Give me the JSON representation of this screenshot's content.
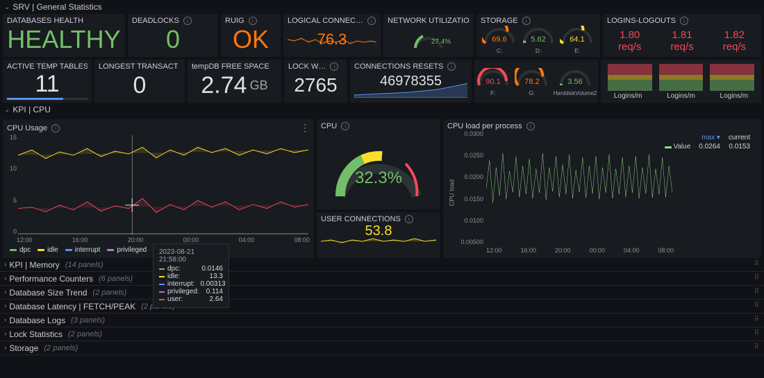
{
  "row_srv": {
    "title": "SRV | General Statistics"
  },
  "stats": {
    "db_health": {
      "title": "DATABASES HEALTH",
      "value": "HEALTHY"
    },
    "deadlocks": {
      "title": "DEADLOCKS",
      "value": "0"
    },
    "ruig": {
      "title": "RUIG",
      "value": "OK"
    },
    "logical_conn": {
      "title": "LOGICAL CONNEC…",
      "value": "76.3"
    },
    "net_util": {
      "title": "NETWORK UTILIZATION",
      "value": "27.4%"
    },
    "storage": {
      "title": "STORAGE"
    },
    "logins_logouts": {
      "title": "LOGINS-LOGOUTS",
      "v1": "1.80 req/s",
      "v2": "1.81 req/s",
      "v3": "1.82 req/s"
    },
    "active_temp": {
      "title": "ACTIVE TEMP TABLES",
      "value": "11"
    },
    "longest_tx": {
      "title": "LONGEST TRANSACT R…",
      "value": "0"
    },
    "tempdb": {
      "title": "tempDB FREE SPACE",
      "value": "2.74",
      "unit": "GB"
    },
    "lock_w": {
      "title": "LOCK W…",
      "value": "2765"
    },
    "conn_resets": {
      "title": "CONNECTIONS RESETS",
      "value": "46978355"
    },
    "logins_m": {
      "l1": "Logins/m",
      "l2": "Logins/m",
      "l3": "Logins/m"
    }
  },
  "gauges_top": [
    {
      "label": "C:",
      "value": "69.6",
      "color": "#ff780a"
    },
    {
      "label": "D:",
      "value": "5.62",
      "color": "#73bf69"
    },
    {
      "label": "E:",
      "value": "64.1",
      "color": "#fade2a"
    }
  ],
  "gauges_bot": [
    {
      "label": "F:",
      "value": "90.1",
      "color": "#f2495c"
    },
    {
      "label": "G:",
      "value": "78.2",
      "color": "#ff780a"
    },
    {
      "label": "HarddiskVolume2",
      "value": "3.56",
      "color": "#73bf69"
    }
  ],
  "row_cpu": {
    "title": "KPI | CPU"
  },
  "cpu_usage": {
    "title": "CPU Usage",
    "y_ticks": [
      "15",
      "10",
      "5",
      "0"
    ],
    "x_ticks": [
      "12:00",
      "16:00",
      "20:00",
      "00:00",
      "04:00",
      "08:00"
    ],
    "legend": [
      {
        "label": "dpc",
        "color": "#73bf69"
      },
      {
        "label": "idle",
        "color": "#fade2a"
      },
      {
        "label": "interrupt",
        "color": "#5794f2"
      },
      {
        "label": "privileged",
        "color": "#b877d9"
      }
    ],
    "tooltip": {
      "ts": "2023-08-21 21:58:00",
      "rows": [
        {
          "label": "dpc:",
          "value": "0.0146",
          "color": "#73bf69"
        },
        {
          "label": "idle:",
          "value": "13.3",
          "color": "#fade2a"
        },
        {
          "label": "interrupt:",
          "value": "0.00313",
          "color": "#5794f2"
        },
        {
          "label": "privileged:",
          "value": "0.114",
          "color": "#b877d9"
        },
        {
          "label": "user:",
          "value": "2.64",
          "color": "#f2495c"
        }
      ]
    }
  },
  "cpu_gauge": {
    "title": "CPU",
    "value": "32.3%"
  },
  "user_conn": {
    "title": "USER CONNECTIONS",
    "value": "53.8"
  },
  "cpu_load": {
    "title": "CPU load per process",
    "y_label": "CPU load",
    "y_ticks": [
      "0.0300",
      "0.0250",
      "0.0200",
      "0.0150",
      "0.0100",
      "0.00500"
    ],
    "x_ticks": [
      "12:00",
      "16:00",
      "20:00",
      "00:00",
      "04:00",
      "08:00"
    ],
    "legend": {
      "h1": "max ▾",
      "h2": "current",
      "row_label": "Value",
      "v1": "0.0264",
      "v2": "0.0153",
      "color": "#96d98d"
    }
  },
  "collapsed_rows": [
    {
      "title": "KPI | Memory",
      "count": "(14 panels)"
    },
    {
      "title": "Performance Counters",
      "count": "(6 panels)"
    },
    {
      "title": "Database Size Trend",
      "count": "(2 panels)"
    },
    {
      "title": "Database Latency | FETCH/PEAK",
      "count": "(2 panels)"
    },
    {
      "title": "Database Logs",
      "count": "(3 panels)"
    },
    {
      "title": "Lock Statistics",
      "count": "(2 panels)"
    },
    {
      "title": "Storage",
      "count": "(2 panels)"
    }
  ]
}
